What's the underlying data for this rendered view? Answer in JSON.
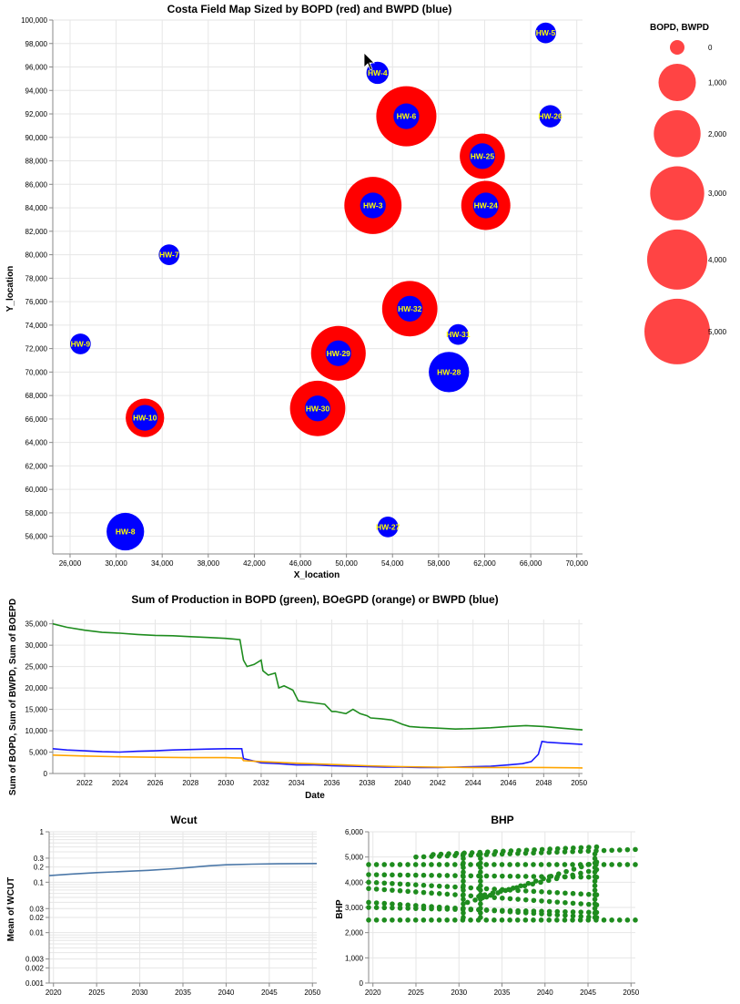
{
  "chart_data": [
    {
      "type": "scatter",
      "title": "Costa Field Map Sized by BOPD (red) and BWPD (blue)",
      "xlabel": "X_location",
      "ylabel": "Y_location",
      "xlim": [
        24500,
        70500
      ],
      "ylim": [
        54500,
        100000
      ],
      "x_ticks": [
        "26,000",
        "30,000",
        "34,000",
        "38,000",
        "42,000",
        "46,000",
        "50,000",
        "54,000",
        "58,000",
        "62,000",
        "66,000",
        "70,000"
      ],
      "y_ticks": [
        "56,000",
        "58,000",
        "60,000",
        "62,000",
        "64,000",
        "66,000",
        "68,000",
        "70,000",
        "72,000",
        "74,000",
        "76,000",
        "78,000",
        "80,000",
        "82,000",
        "84,000",
        "86,000",
        "88,000",
        "90,000",
        "92,000",
        "94,000",
        "96,000",
        "98,000",
        "100,000"
      ],
      "legend": {
        "title": "BOPD, BWPD",
        "entries": [
          {
            "label": "0",
            "value": 0
          },
          {
            "label": "1,000",
            "value": 1000
          },
          {
            "label": "2,000",
            "value": 2000
          },
          {
            "label": "3,000",
            "value": 3000
          },
          {
            "label": "4,000",
            "value": 4000
          },
          {
            "label": "5,000",
            "value": 5000
          }
        ]
      },
      "colors": {
        "oil": "#ff0000",
        "water": "#0000ff",
        "label": "#ffff00",
        "legend": "#ff4444"
      },
      "wells": [
        {
          "name": "HW-5",
          "x": 67300,
          "y": 98900,
          "bopd": 0,
          "bwpd": 100
        },
        {
          "name": "HW-4",
          "x": 52700,
          "y": 95500,
          "bopd": 0,
          "bwpd": 150
        },
        {
          "name": "HW-6",
          "x": 55200,
          "y": 91800,
          "bopd": 4000,
          "bwpd": 300
        },
        {
          "name": "HW-26",
          "x": 67700,
          "y": 91800,
          "bopd": 0,
          "bwpd": 150
        },
        {
          "name": "HW-25",
          "x": 61800,
          "y": 88400,
          "bopd": 1800,
          "bwpd": 300
        },
        {
          "name": "HW-3",
          "x": 52300,
          "y": 84200,
          "bopd": 3500,
          "bwpd": 300
        },
        {
          "name": "HW-24",
          "x": 62100,
          "y": 84200,
          "bopd": 2300,
          "bwpd": 300
        },
        {
          "name": "HW-7",
          "x": 34600,
          "y": 80000,
          "bopd": 0,
          "bwpd": 100
        },
        {
          "name": "HW-32",
          "x": 55500,
          "y": 75400,
          "bopd": 3200,
          "bwpd": 300
        },
        {
          "name": "HW-31",
          "x": 59700,
          "y": 73200,
          "bopd": 0,
          "bwpd": 100
        },
        {
          "name": "HW-9",
          "x": 26900,
          "y": 72400,
          "bopd": 0,
          "bwpd": 100
        },
        {
          "name": "HW-29",
          "x": 49300,
          "y": 71600,
          "bopd": 3100,
          "bwpd": 300
        },
        {
          "name": "HW-28",
          "x": 58900,
          "y": 70000,
          "bopd": 0,
          "bwpd": 1500
        },
        {
          "name": "HW-30",
          "x": 47500,
          "y": 66900,
          "bopd": 3200,
          "bwpd": 300
        },
        {
          "name": "HW-10",
          "x": 32500,
          "y": 66100,
          "bopd": 1100,
          "bwpd": 300
        },
        {
          "name": "HW-27",
          "x": 53600,
          "y": 56800,
          "bopd": 0,
          "bwpd": 100
        },
        {
          "name": "HW-8",
          "x": 30800,
          "y": 56400,
          "bopd": 0,
          "bwpd": 1200
        }
      ]
    },
    {
      "type": "line",
      "title": "Sum of Production in BOPD (green), BOeGPD (orange) or BWPD (blue)",
      "xlabel": "Date",
      "ylabel": "Sum of BOPD, Sum of BWPD, Sum of BOEPD",
      "xlim": [
        2020.2,
        2050.2
      ],
      "ylim": [
        0,
        36000
      ],
      "x_ticks": [
        "2022",
        "2024",
        "2026",
        "2028",
        "2030",
        "2032",
        "2034",
        "2036",
        "2038",
        "2040",
        "2042",
        "2044",
        "2046",
        "2048",
        "2050"
      ],
      "y_ticks": [
        "0",
        "5,000",
        "10,000",
        "15,000",
        "20,000",
        "25,000",
        "30,000",
        "35,000"
      ],
      "series": [
        {
          "color": "#1e8c1e",
          "x": [
            2020.2,
            2021,
            2022,
            2023,
            2024,
            2025,
            2026,
            2027,
            2028,
            2029,
            2030,
            2030.8,
            2031.0,
            2031.2,
            2031.6,
            2032.0,
            2032.1,
            2032.4,
            2032.8,
            2033.0,
            2033.3,
            2033.8,
            2034.1,
            2034.4,
            2035.0,
            2035.6,
            2036.0,
            2036.2,
            2036.8,
            2037.2,
            2037.6,
            2038.0,
            2038.2,
            2038.8,
            2039.4,
            2040.0,
            2040.4,
            2041,
            2042,
            2043,
            2044,
            2045,
            2046,
            2047,
            2048,
            2049,
            2050.2
          ],
          "values": [
            35000,
            34200,
            33500,
            33000,
            32800,
            32500,
            32300,
            32200,
            32000,
            31800,
            31600,
            31300,
            26500,
            25000,
            25500,
            26500,
            24000,
            23000,
            23500,
            20000,
            20500,
            19500,
            17000,
            16800,
            16500,
            16200,
            14500,
            14500,
            14000,
            15000,
            14000,
            13500,
            13000,
            12800,
            12500,
            11500,
            11000,
            10800,
            10600,
            10400,
            10500,
            10700,
            11000,
            11200,
            11000,
            10600,
            10200
          ]
        },
        {
          "color": "#1a1aff",
          "x": [
            2020.2,
            2021,
            2022,
            2023,
            2024,
            2025,
            2026,
            2027,
            2028,
            2029,
            2030,
            2030.9,
            2031.0,
            2031.5,
            2032,
            2033,
            2034,
            2035,
            2036,
            2037,
            2038,
            2039,
            2040,
            2041,
            2042,
            2043,
            2044,
            2045,
            2046,
            2046.8,
            2047.3,
            2047.7,
            2047.9,
            2048.2,
            2049,
            2050.2
          ],
          "values": [
            5800,
            5500,
            5300,
            5100,
            5000,
            5200,
            5300,
            5500,
            5600,
            5700,
            5800,
            5800,
            3500,
            3000,
            2500,
            2300,
            2000,
            2000,
            1800,
            1700,
            1600,
            1500,
            1500,
            1400,
            1400,
            1500,
            1600,
            1700,
            2000,
            2300,
            2800,
            4500,
            7500,
            7300,
            7100,
            6800
          ]
        },
        {
          "color": "#ffa500",
          "x": [
            2020.2,
            2022,
            2024,
            2026,
            2028,
            2030,
            2030.9,
            2031.0,
            2032,
            2034,
            2036,
            2038,
            2040,
            2042,
            2044,
            2046,
            2048,
            2050.2
          ],
          "values": [
            4300,
            4100,
            3900,
            3800,
            3700,
            3700,
            3600,
            3000,
            2800,
            2400,
            2100,
            1800,
            1600,
            1500,
            1400,
            1400,
            1400,
            1300
          ]
        }
      ]
    },
    {
      "type": "line",
      "title": "Wcut",
      "xlabel": "",
      "ylabel": "Mean of WCUT",
      "scale": "log",
      "xlim": [
        2019.5,
        2050.5
      ],
      "ylim": [
        0.001,
        1
      ],
      "x_ticks": [
        "2020",
        "2025",
        "2030",
        "2035",
        "2040",
        "2045",
        "2050"
      ],
      "y_ticks": [
        "0.001",
        "0.002",
        "0.003",
        "0.01",
        "0.02",
        "0.03",
        "0.1",
        "0.2",
        "0.3",
        "1"
      ],
      "series": [
        {
          "color": "#4c78a8",
          "x": [
            2019.5,
            2022,
            2025,
            2028,
            2031,
            2034,
            2036,
            2038,
            2040,
            2043,
            2046,
            2050.5
          ],
          "values": [
            0.135,
            0.145,
            0.155,
            0.163,
            0.172,
            0.185,
            0.198,
            0.212,
            0.222,
            0.228,
            0.232,
            0.235
          ]
        }
      ]
    },
    {
      "type": "scatter",
      "title": "BHP",
      "xlabel": "",
      "ylabel": "BHP",
      "xlim": [
        2019.5,
        2050.5
      ],
      "ylim": [
        0,
        6000
      ],
      "x_ticks": [
        "2020",
        "2025",
        "2030",
        "2035",
        "2040",
        "2045",
        "2050"
      ],
      "y_ticks": [
        "0",
        "1,000",
        "2,000",
        "3,000",
        "4,000",
        "5,000",
        "6,000"
      ],
      "color": "#1e8c1e",
      "bands": [
        {
          "x_from": 2019.5,
          "x_to": 2050.5,
          "y_from": 2500,
          "y_to": 2500
        },
        {
          "x_from": 2019.5,
          "x_to": 2050.5,
          "y_from": 4700,
          "y_to": 4700
        },
        {
          "x_from": 2025,
          "x_to": 2050.5,
          "y_from": 5000,
          "y_to": 5300
        },
        {
          "x_from": 2027,
          "x_to": 2046,
          "y_from": 5100,
          "y_to": 5400
        },
        {
          "x_from": 2019.5,
          "x_to": 2046,
          "y_from": 4300,
          "y_to": 4200
        },
        {
          "x_from": 2019.5,
          "x_to": 2046,
          "y_from": 4000,
          "y_to": 3500
        },
        {
          "x_from": 2019.5,
          "x_to": 2046,
          "y_from": 3750,
          "y_to": 3100
        },
        {
          "x_from": 2019.5,
          "x_to": 2046,
          "y_from": 3200,
          "y_to": 2600
        },
        {
          "x_from": 2019.5,
          "x_to": 2046,
          "y_from": 3000,
          "y_to": 2800
        },
        {
          "x_from": 2031,
          "x_to": 2046,
          "y_from": 3200,
          "y_to": 4800
        },
        {
          "x_from": 2033,
          "x_to": 2046,
          "y_from": 3500,
          "y_to": 4500
        }
      ],
      "spikes": [
        2030.5,
        2032.5,
        2045.8
      ]
    }
  ]
}
